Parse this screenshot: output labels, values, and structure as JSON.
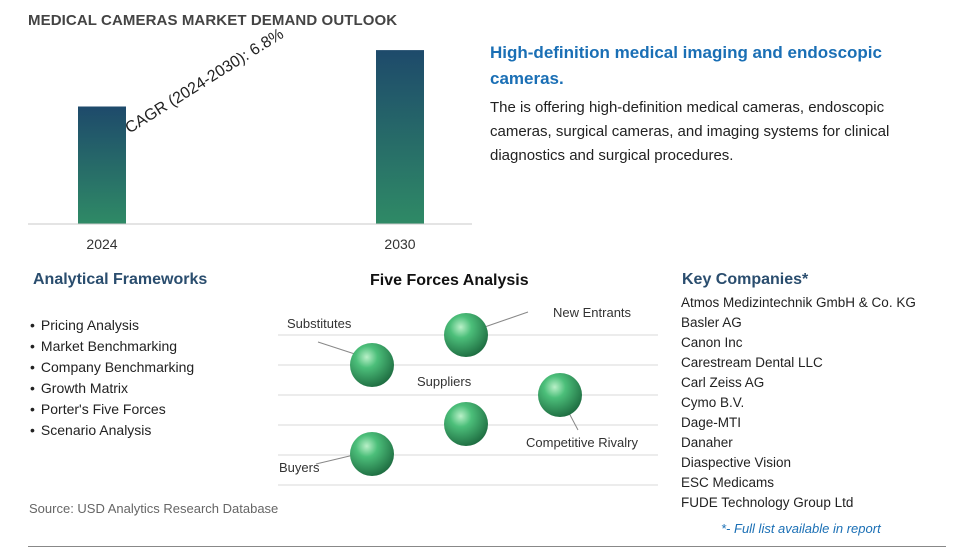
{
  "title": "MEDICAL CAMERAS MARKET DEMAND OUTLOOK",
  "chart_data": {
    "type": "bar",
    "categories": [
      "2024",
      "2030"
    ],
    "values": [
      1.0,
      1.48
    ],
    "annotation": "CAGR (2024-2030):   6.8%",
    "ylim": [
      0,
      1.6
    ],
    "grid": false
  },
  "highlight": {
    "title": "High-definition medical imaging and endoscopic cameras.",
    "description": "The is offering high-definition medical cameras, endoscopic cameras, surgical cameras, and imaging systems for clinical diagnostics and surgical procedures."
  },
  "frameworks": {
    "title": "Analytical Frameworks",
    "items": [
      "Pricing Analysis",
      "Market Benchmarking",
      "Company Benchmarking",
      "Growth Matrix",
      "Porter's Five Forces",
      "Scenario Analysis"
    ]
  },
  "five_forces": {
    "title": "Five Forces Analysis",
    "labels": [
      "Substitutes",
      "New Entrants",
      "Suppliers",
      "Competitive Rivalry",
      "Buyers"
    ]
  },
  "companies": {
    "title": "Key Companies*",
    "items": [
      "Atmos Medizintechnik GmbH & Co. KG",
      "Basler AG",
      "Canon Inc",
      "Carestream Dental LLC",
      "Carl Zeiss AG",
      "Cymo B.V.",
      "Dage-MTI",
      "Danaher",
      "Diaspective Vision",
      "ESC Medicams",
      "FUDE Technology Group Ltd"
    ],
    "note": "*- Full list available in report"
  },
  "source": "Source: USD Analytics Research Database",
  "colors": {
    "bar_top": "#1e4a6b",
    "bar_bottom": "#2f8a66",
    "sphere": "#3aa46a",
    "heading_blue": "#1a6fb5",
    "heading_navy": "#2a4d6e"
  }
}
